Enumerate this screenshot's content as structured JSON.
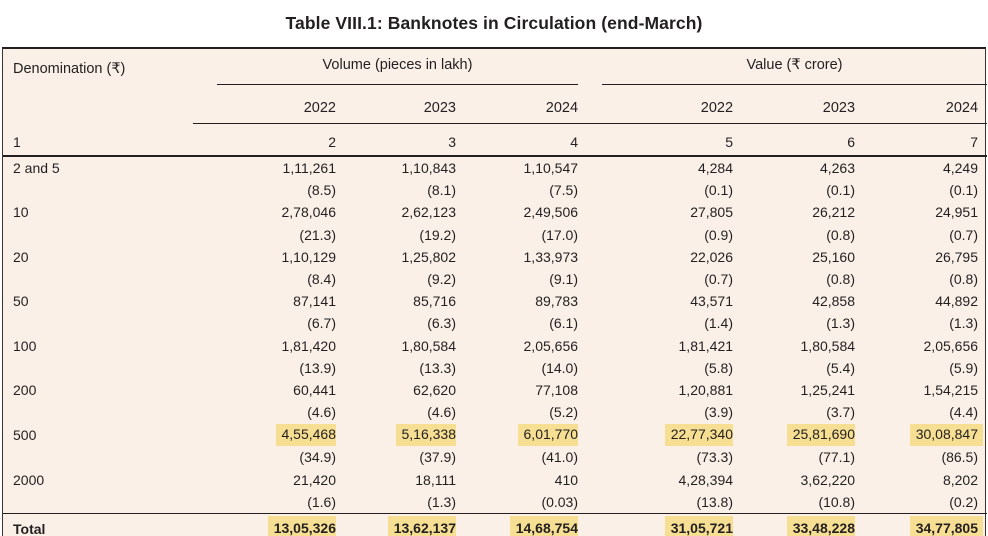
{
  "title": "Table VIII.1: Banknotes in Circulation (end-March)",
  "colors": {
    "page_background": "#ffffff",
    "table_background": "#faf0e8",
    "highlight": "#f6df92",
    "text": "#231f20",
    "rule": "#231f20"
  },
  "header": {
    "denomination_label": "Denomination (₹)",
    "groups": [
      {
        "label": "Volume (pieces in lakh)"
      },
      {
        "label": "Value (₹ crore)"
      }
    ],
    "years": [
      "2022",
      "2023",
      "2024",
      "2022",
      "2023",
      "2024"
    ],
    "column_numbers": [
      "1",
      "2",
      "3",
      "4",
      "5",
      "6",
      "7"
    ]
  },
  "rows": [
    {
      "denomination": "2 and 5",
      "highlight": false,
      "values": [
        "1,11,261",
        "1,10,843",
        "1,10,547",
        "4,284",
        "4,263",
        "4,249"
      ],
      "shares": [
        "(8.5)",
        "(8.1)",
        "(7.5)",
        "(0.1)",
        "(0.1)",
        "(0.1)"
      ]
    },
    {
      "denomination": "10",
      "highlight": false,
      "values": [
        "2,78,046",
        "2,62,123",
        "2,49,506",
        "27,805",
        "26,212",
        "24,951"
      ],
      "shares": [
        "(21.3)",
        "(19.2)",
        "(17.0)",
        "(0.9)",
        "(0.8)",
        "(0.7)"
      ]
    },
    {
      "denomination": "20",
      "highlight": false,
      "values": [
        "1,10,129",
        "1,25,802",
        "1,33,973",
        "22,026",
        "25,160",
        "26,795"
      ],
      "shares": [
        "(8.4)",
        "(9.2)",
        "(9.1)",
        "(0.7)",
        "(0.8)",
        "(0.8)"
      ]
    },
    {
      "denomination": "50",
      "highlight": false,
      "values": [
        "87,141",
        "85,716",
        "89,783",
        "43,571",
        "42,858",
        "44,892"
      ],
      "shares": [
        "(6.7)",
        "(6.3)",
        "(6.1)",
        "(1.4)",
        "(1.3)",
        "(1.3)"
      ]
    },
    {
      "denomination": "100",
      "highlight": false,
      "values": [
        "1,81,420",
        "1,80,584",
        "2,05,656",
        "1,81,421",
        "1,80,584",
        "2,05,656"
      ],
      "shares": [
        "(13.9)",
        "(13.3)",
        "(14.0)",
        "(5.8)",
        "(5.4)",
        "(5.9)"
      ]
    },
    {
      "denomination": "200",
      "highlight": false,
      "values": [
        "60,441",
        "62,620",
        "77,108",
        "1,20,881",
        "1,25,241",
        "1,54,215"
      ],
      "shares": [
        "(4.6)",
        "(4.6)",
        "(5.2)",
        "(3.9)",
        "(3.7)",
        "(4.4)"
      ]
    },
    {
      "denomination": "500",
      "highlight": true,
      "values": [
        "4,55,468",
        "5,16,338",
        "6,01,770",
        "22,77,340",
        "25,81,690",
        "30,08,847"
      ],
      "shares": [
        "(34.9)",
        "(37.9)",
        "(41.0)",
        "(73.3)",
        "(77.1)",
        "(86.5)"
      ]
    },
    {
      "denomination": "2000",
      "highlight": false,
      "values": [
        "21,420",
        "18,111",
        "410",
        "4,28,394",
        "3,62,220",
        "8,202"
      ],
      "shares": [
        "(1.6)",
        "(1.3)",
        "(0.03)",
        "(13.8)",
        "(10.8)",
        "(0.2)"
      ]
    }
  ],
  "total": {
    "label": "Total",
    "highlight": true,
    "values": [
      "13,05,326",
      "13,62,137",
      "14,68,754",
      "31,05,721",
      "33,48,228",
      "34,77,805"
    ]
  }
}
